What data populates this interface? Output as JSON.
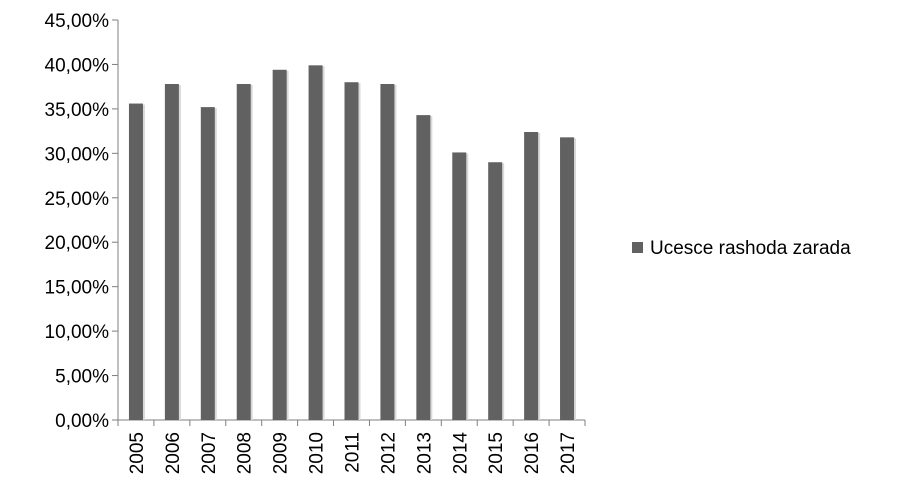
{
  "chart_data": {
    "type": "bar",
    "categories": [
      "2005",
      "2006",
      "2007",
      "2008",
      "2009",
      "2010",
      "2011",
      "2012",
      "2013",
      "2014",
      "2015",
      "2016",
      "2017"
    ],
    "series": [
      {
        "name": "Ucesce rashoda zarada",
        "values": [
          35.6,
          37.8,
          35.2,
          37.8,
          39.4,
          39.9,
          38.0,
          37.8,
          34.3,
          30.1,
          29.0,
          32.4,
          31.8
        ],
        "color": "#616161"
      }
    ],
    "y_ticks": [
      "0,00%",
      "5,00%",
      "10,00%",
      "15,00%",
      "20,00%",
      "25,00%",
      "30,00%",
      "35,00%",
      "40,00%",
      "45,00%"
    ],
    "ylim": [
      0,
      45
    ],
    "grid": false,
    "legend_position": "right",
    "bar_shadow": true
  }
}
